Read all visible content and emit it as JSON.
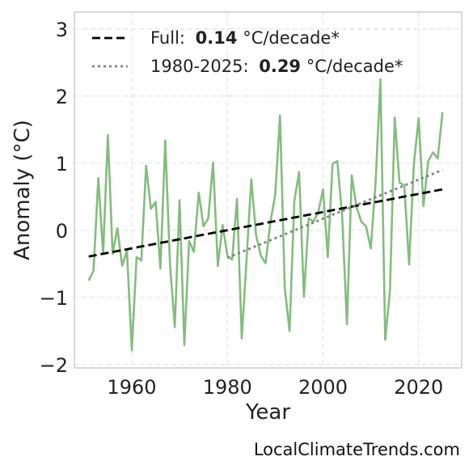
{
  "chart_data": {
    "type": "line",
    "xlabel": "Year",
    "ylabel": "Anomaly (°C)",
    "xlim": [
      1948,
      2029
    ],
    "ylim": [
      -2.05,
      3.25
    ],
    "xticks": [
      "1960",
      "1980",
      "2000",
      "2020"
    ],
    "yticks": [
      "−2",
      "−1",
      "0",
      "1",
      "2",
      "3"
    ],
    "grid": true,
    "legend_position": "top-left",
    "series": [
      {
        "kind": "anomaly",
        "color": "#86bb80",
        "x": [
          1951,
          1952,
          1953,
          1954,
          1955,
          1956,
          1957,
          1958,
          1959,
          1960,
          1961,
          1962,
          1963,
          1964,
          1965,
          1966,
          1967,
          1968,
          1969,
          1970,
          1971,
          1972,
          1973,
          1974,
          1975,
          1976,
          1977,
          1978,
          1979,
          1980,
          1981,
          1982,
          1983,
          1984,
          1985,
          1986,
          1987,
          1988,
          1989,
          1990,
          1991,
          1992,
          1993,
          1994,
          1995,
          1996,
          1997,
          1998,
          1999,
          2000,
          2001,
          2002,
          2003,
          2004,
          2005,
          2006,
          2007,
          2008,
          2009,
          2010,
          2011,
          2012,
          2013,
          2014,
          2015,
          2016,
          2017,
          2018,
          2019,
          2020,
          2021,
          2022,
          2023,
          2024,
          2025
        ],
        "y": [
          -0.75,
          -0.6,
          0.78,
          -0.35,
          1.42,
          -0.35,
          0.03,
          -0.53,
          -0.3,
          -1.79,
          -0.4,
          -0.45,
          0.96,
          0.32,
          0.42,
          -0.57,
          1.34,
          -0.52,
          -1.44,
          0.45,
          -1.71,
          -0.16,
          -0.32,
          0.56,
          0.06,
          0.18,
          1.01,
          -0.53,
          0.08,
          -0.38,
          -0.44,
          0.47,
          -1.61,
          -0.44,
          0.76,
          -0.07,
          -0.38,
          -0.49,
          0.13,
          0.53,
          1.71,
          -0.86,
          -1.5,
          0.43,
          0.87,
          -0.99,
          0.18,
          0.13,
          0.27,
          0.61,
          -0.4,
          0.99,
          1.03,
          0.21,
          -1.4,
          0.82,
          0.35,
          0.13,
          0.06,
          -0.27,
          0.73,
          2.25,
          -1.63,
          -0.9,
          1.68,
          0.71,
          0.67,
          -0.51,
          0.99,
          1.67,
          0.36,
          1.03,
          1.16,
          1.07,
          1.76
        ]
      },
      {
        "name": "Full:",
        "kind": "trend",
        "rate": "0.14",
        "unit": "°C/decade*",
        "style": "dashed",
        "color": "#000000",
        "x": [
          1951,
          2025
        ],
        "y": [
          -0.39,
          0.61
        ]
      },
      {
        "name": "1980-2025:",
        "kind": "trend",
        "rate": "0.29",
        "unit": "°C/decade*",
        "style": "dotted",
        "color": "#808080",
        "x": [
          1980,
          2025
        ],
        "y": [
          -0.41,
          0.9
        ]
      }
    ]
  },
  "watermark": "LocalClimateTrends.com"
}
